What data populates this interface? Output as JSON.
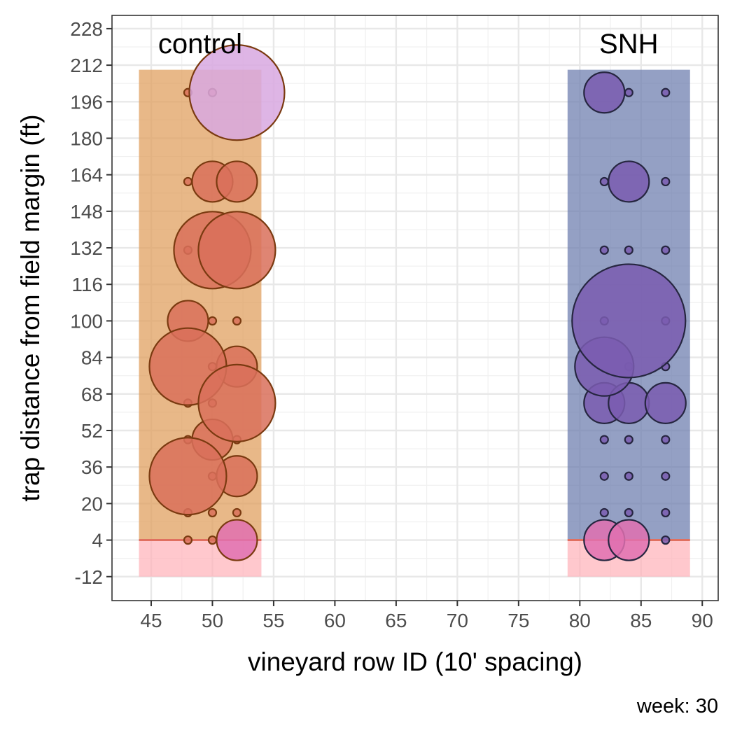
{
  "chart_data": {
    "type": "scatter",
    "xlabel": "vineyard row ID (10' spacing)",
    "ylabel": "trap distance from field margin (ft)",
    "caption": "week: 30",
    "xlim": [
      41.8,
      91.3
    ],
    "ylim": [
      -22.5,
      233.8
    ],
    "x_ticks": [
      45,
      50,
      55,
      60,
      65,
      70,
      75,
      80,
      85,
      90
    ],
    "y_ticks": [
      -12,
      4,
      20,
      36,
      52,
      68,
      84,
      100,
      116,
      132,
      148,
      164,
      180,
      196,
      212,
      228
    ],
    "grid": true,
    "colors": {
      "control_fill": "#e0a060",
      "snh_fill": "#7080b0",
      "margin_fill": "#ffb0b8",
      "margin_line": "#e07060",
      "control_point": "#d9705a",
      "control_point_edge": "#7a3a10",
      "snh_point": "#7a5cb0",
      "snh_point_edge": "#262640",
      "highlight_point": "#e070b0",
      "highlight_point_top": "#d8a8e0"
    },
    "regions": [
      {
        "label": "control",
        "x": [
          44,
          54
        ],
        "y": [
          4,
          210
        ],
        "color": "control_fill"
      },
      {
        "label": "",
        "x": [
          44,
          54
        ],
        "y": [
          -12,
          4
        ],
        "color": "margin_fill"
      },
      {
        "label": "SNH",
        "x": [
          79,
          89
        ],
        "y": [
          4,
          210
        ],
        "color": "snh_fill"
      },
      {
        "label": "",
        "x": [
          79,
          89
        ],
        "y": [
          -12,
          4
        ],
        "color": "margin_fill"
      }
    ],
    "series": [
      {
        "group": "control",
        "points": [
          {
            "x": 48,
            "y": 200,
            "size": 0
          },
          {
            "x": 50,
            "y": 200,
            "size": 0
          },
          {
            "x": 52,
            "y": 200,
            "size": 5,
            "highlight": "top"
          },
          {
            "x": 48,
            "y": 161,
            "size": 0
          },
          {
            "x": 50,
            "y": 161,
            "size": 2
          },
          {
            "x": 52,
            "y": 161,
            "size": 2
          },
          {
            "x": 48,
            "y": 131,
            "size": 0
          },
          {
            "x": 50,
            "y": 131,
            "size": 4
          },
          {
            "x": 52,
            "y": 131,
            "size": 4
          },
          {
            "x": 48,
            "y": 100,
            "size": 2
          },
          {
            "x": 50,
            "y": 100,
            "size": 0
          },
          {
            "x": 52,
            "y": 100,
            "size": 0
          },
          {
            "x": 48,
            "y": 80,
            "size": 4
          },
          {
            "x": 50,
            "y": 80,
            "size": 0
          },
          {
            "x": 52,
            "y": 80,
            "size": 2
          },
          {
            "x": 48,
            "y": 64,
            "size": 0
          },
          {
            "x": 50,
            "y": 64,
            "size": 0
          },
          {
            "x": 52,
            "y": 64,
            "size": 4
          },
          {
            "x": 48,
            "y": 48,
            "size": 0
          },
          {
            "x": 50,
            "y": 48,
            "size": 2
          },
          {
            "x": 52,
            "y": 48,
            "size": 0
          },
          {
            "x": 48,
            "y": 32,
            "size": 4
          },
          {
            "x": 50,
            "y": 32,
            "size": 0
          },
          {
            "x": 52,
            "y": 32,
            "size": 2
          },
          {
            "x": 48,
            "y": 16,
            "size": 0
          },
          {
            "x": 50,
            "y": 16,
            "size": 0
          },
          {
            "x": 52,
            "y": 16,
            "size": 0
          },
          {
            "x": 48,
            "y": 4,
            "size": 0
          },
          {
            "x": 50,
            "y": 4,
            "size": 0
          },
          {
            "x": 52,
            "y": 4,
            "size": 2,
            "highlight": "margin"
          }
        ]
      },
      {
        "group": "SNH",
        "points": [
          {
            "x": 82,
            "y": 200,
            "size": 2
          },
          {
            "x": 84,
            "y": 200,
            "size": 0
          },
          {
            "x": 87,
            "y": 200,
            "size": 0
          },
          {
            "x": 82,
            "y": 161,
            "size": 0
          },
          {
            "x": 84,
            "y": 161,
            "size": 2
          },
          {
            "x": 87,
            "y": 161,
            "size": 0
          },
          {
            "x": 82,
            "y": 131,
            "size": 0
          },
          {
            "x": 84,
            "y": 131,
            "size": 0
          },
          {
            "x": 87,
            "y": 131,
            "size": 0
          },
          {
            "x": 82,
            "y": 100,
            "size": 0
          },
          {
            "x": 84,
            "y": 100,
            "size": 6
          },
          {
            "x": 87,
            "y": 100,
            "size": 0
          },
          {
            "x": 82,
            "y": 80,
            "size": 3
          },
          {
            "x": 84,
            "y": 80,
            "size": 0
          },
          {
            "x": 87,
            "y": 80,
            "size": 0
          },
          {
            "x": 82,
            "y": 64,
            "size": 2
          },
          {
            "x": 84,
            "y": 64,
            "size": 2
          },
          {
            "x": 87,
            "y": 64,
            "size": 2
          },
          {
            "x": 82,
            "y": 48,
            "size": 0
          },
          {
            "x": 84,
            "y": 48,
            "size": 0
          },
          {
            "x": 87,
            "y": 48,
            "size": 0
          },
          {
            "x": 82,
            "y": 32,
            "size": 0
          },
          {
            "x": 84,
            "y": 32,
            "size": 0
          },
          {
            "x": 87,
            "y": 32,
            "size": 0
          },
          {
            "x": 82,
            "y": 16,
            "size": 0
          },
          {
            "x": 84,
            "y": 16,
            "size": 0
          },
          {
            "x": 87,
            "y": 16,
            "size": 0
          },
          {
            "x": 82,
            "y": 4,
            "size": 2,
            "highlight": "margin"
          },
          {
            "x": 84,
            "y": 4,
            "size": 2,
            "highlight": "margin"
          },
          {
            "x": 87,
            "y": 4,
            "size": 0
          }
        ]
      }
    ]
  }
}
